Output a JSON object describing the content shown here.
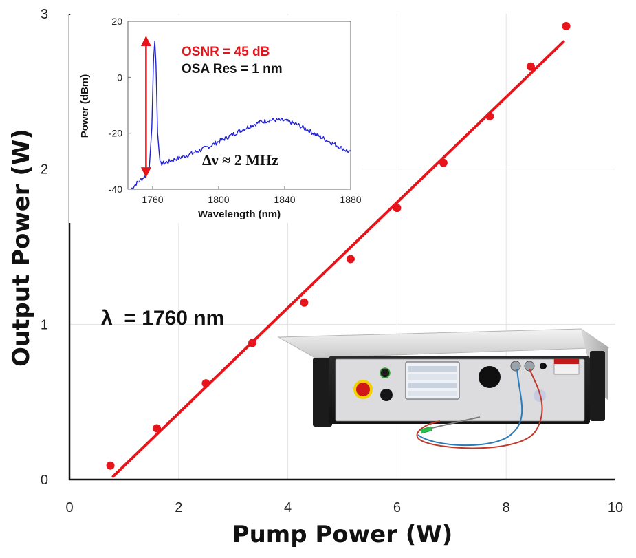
{
  "chart_data": [
    {
      "type": "scatter",
      "xlabel": "Pump Power (W)",
      "ylabel": "Output Power (W)",
      "xlim": [
        0,
        10
      ],
      "ylim": [
        0,
        3
      ],
      "xticks": [
        "0",
        "2",
        "4",
        "6",
        "8",
        "10"
      ],
      "yticks": [
        "0",
        "1",
        "2",
        "3"
      ],
      "grid": true,
      "series": [
        {
          "marker": "circle",
          "color": "#e8141b",
          "x": [
            0.75,
            1.6,
            2.5,
            3.35,
            4.3,
            5.15,
            6.0,
            6.85,
            7.7,
            8.45,
            9.1
          ],
          "y": [
            0.09,
            0.33,
            0.62,
            0.88,
            1.14,
            1.42,
            1.75,
            2.04,
            2.34,
            2.66,
            2.92
          ]
        }
      ],
      "fit_line": {
        "color": "#e8141b",
        "x": [
          0.8,
          9.05
        ],
        "y": [
          0.02,
          2.82
        ]
      },
      "annotations": [
        {
          "text": "λ  = 1760 nm",
          "x": 0.75,
          "y": 1.0
        }
      ]
    },
    {
      "type": "line",
      "inset": true,
      "xlabel": "Wavelength (nm)",
      "ylabel": "Power (dBm)",
      "xlim": [
        1745,
        1880
      ],
      "ylim": [
        -40,
        20
      ],
      "xticks": [
        1760,
        1800,
        1840,
        1880
      ],
      "yticks": [
        20,
        0,
        -20,
        -40
      ],
      "series": [
        {
          "color": "#2323d6",
          "x": [
            1747,
            1750,
            1753,
            1756,
            1758,
            1759.5,
            1760.5,
            1761.3,
            1762,
            1763,
            1764.5,
            1768,
            1775,
            1785,
            1795,
            1805,
            1815,
            1825,
            1832,
            1840,
            1848,
            1856,
            1864,
            1872,
            1880
          ],
          "y": [
            -40,
            -38,
            -36.5,
            -35,
            -32,
            -18,
            6,
            13,
            5,
            -20,
            -31,
            -30.5,
            -29,
            -27,
            -24.5,
            -21.5,
            -18.5,
            -16,
            -15.2,
            -15.5,
            -17,
            -19.5,
            -22,
            -24.5,
            -27
          ]
        }
      ],
      "range_arrow": {
        "x": 1756,
        "y_from": -34,
        "y_to": 13
      },
      "annotations": [
        {
          "text": "OSNR = 45 dB",
          "color": "#e8141b"
        },
        {
          "text": "OSA Res = 1 nm",
          "color": "#111111"
        },
        {
          "text": "Δν ≈ 2 MHz",
          "color": "#111111"
        }
      ]
    }
  ]
}
